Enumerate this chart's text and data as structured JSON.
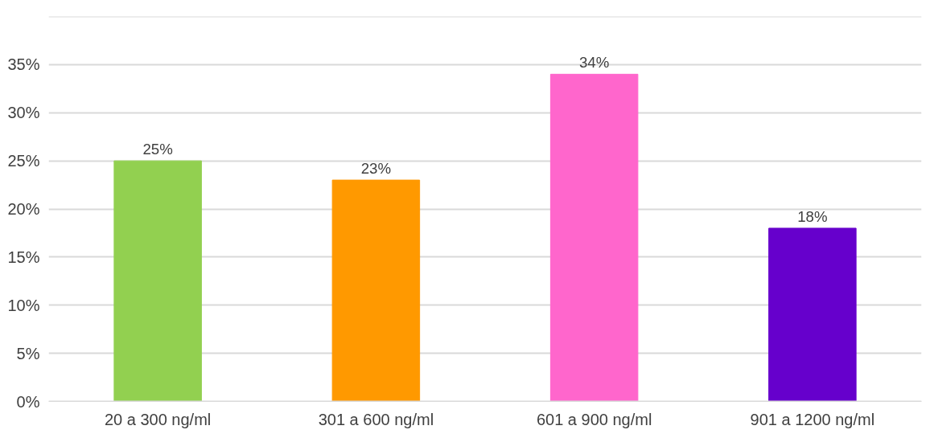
{
  "chart_data": {
    "type": "bar",
    "categories": [
      "20 a 300 ng/ml",
      "301 a 600 ng/ml",
      "601 a 900 ng/ml",
      "901 a 1200 ng/ml"
    ],
    "values": [
      25,
      23,
      34,
      18
    ],
    "colors": [
      "#92d050",
      "#ff9900",
      "#ff66cc",
      "#6600cc"
    ],
    "value_labels": [
      "25%",
      "23%",
      "34%",
      "18%"
    ],
    "ylim": [
      0,
      40
    ],
    "yticks": [
      {
        "value": 0,
        "label": "0%"
      },
      {
        "value": 5,
        "label": "5%"
      },
      {
        "value": 10,
        "label": "10%"
      },
      {
        "value": 15,
        "label": "15%"
      },
      {
        "value": 20,
        "label": "20%"
      },
      {
        "value": 25,
        "label": "25%"
      },
      {
        "value": 30,
        "label": "30%"
      },
      {
        "value": 35,
        "label": "35%"
      },
      {
        "value": 40,
        "label": null
      }
    ],
    "grid": "y"
  }
}
